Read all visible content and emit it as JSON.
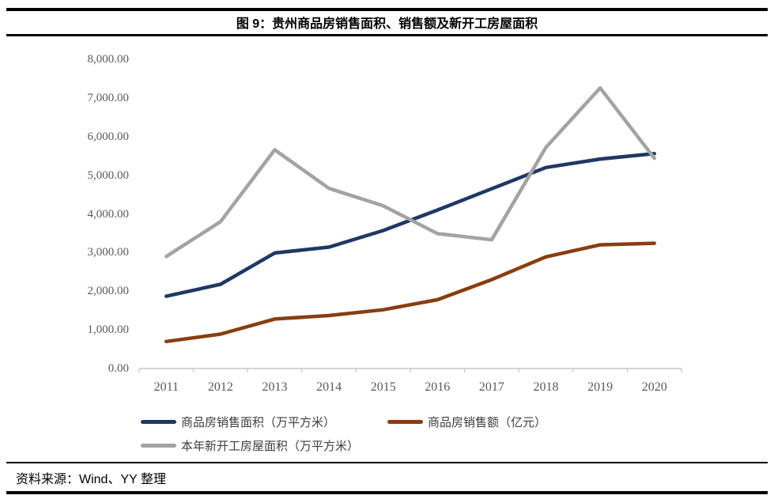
{
  "header": {
    "title": "图 9：贵州商品房销售面积、销售额及新开工房屋面积"
  },
  "footer": {
    "source": "资料来源：Wind、YY 整理"
  },
  "colors": {
    "sales_area": "#1F3864",
    "sales_amount": "#873E10",
    "new_starts": "#A3A3A3",
    "axis": "#C6C6C6",
    "tick_text": "#595959"
  },
  "chart_data": {
    "type": "line",
    "title": "图 9：贵州商品房销售面积、销售额及新开工房屋面积",
    "categories": [
      "2011",
      "2012",
      "2013",
      "2014",
      "2015",
      "2016",
      "2017",
      "2018",
      "2019",
      "2020"
    ],
    "series": [
      {
        "name": "商品房销售面积（万平方米）",
        "color": "#1F3864",
        "values": [
          1870,
          2180,
          2990,
          3140,
          3570,
          4100,
          4650,
          5200,
          5420,
          5560
        ]
      },
      {
        "name": "商品房销售额（亿元）",
        "color": "#873E10",
        "values": [
          700,
          890,
          1280,
          1370,
          1520,
          1780,
          2300,
          2890,
          3200,
          3240
        ]
      },
      {
        "name": "本年新开工房屋面积（万平方米）",
        "color": "#A3A3A3",
        "values": [
          2900,
          3800,
          5660,
          4660,
          4210,
          3490,
          3330,
          5720,
          7260,
          5440
        ]
      }
    ],
    "xlabel": "",
    "ylabel": "",
    "ylim": [
      0,
      8000
    ],
    "ytick_labels": [
      "0.00",
      "1,000.00",
      "2,000.00",
      "3,000.00",
      "4,000.00",
      "5,000.00",
      "6,000.00",
      "7,000.00",
      "8,000.00"
    ],
    "grid": false,
    "legend_position": "bottom"
  }
}
